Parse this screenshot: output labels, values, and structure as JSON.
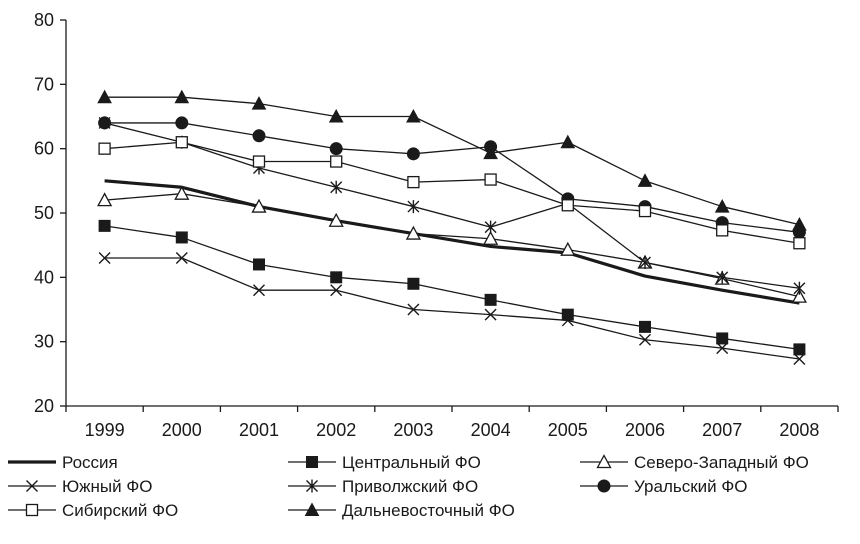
{
  "chart_data": {
    "type": "line",
    "title": "",
    "xlabel": "",
    "ylabel": "",
    "x": [
      "1999",
      "2000",
      "2001",
      "2002",
      "2003",
      "2004",
      "2005",
      "2006",
      "2007",
      "2008"
    ],
    "ylim": [
      20,
      80
    ],
    "yticks": [
      20,
      30,
      40,
      50,
      60,
      70,
      80
    ],
    "grid": false,
    "legend_position": "bottom",
    "series": [
      {
        "name": "Россия",
        "marker": "none",
        "values": [
          55,
          54,
          51,
          48.8,
          46.8,
          44.8,
          43.8,
          40.2,
          38,
          36
        ],
        "bold": true
      },
      {
        "name": "Центральный ФО",
        "marker": "filled-square",
        "values": [
          48,
          46.2,
          42,
          40,
          39,
          36.5,
          34.2,
          32.3,
          30.5,
          28.8
        ]
      },
      {
        "name": "Северо-Западный ФО",
        "marker": "open-triangle",
        "values": [
          52,
          53,
          51,
          48.8,
          46.8,
          46,
          44.3,
          42.3,
          39.8,
          37
        ]
      },
      {
        "name": "Южный ФО",
        "marker": "x",
        "values": [
          43,
          43,
          38,
          38,
          35,
          34.2,
          33.3,
          30.3,
          29,
          27.3
        ]
      },
      {
        "name": "Приволжский ФО",
        "marker": "star",
        "values": [
          64,
          61,
          57,
          54,
          51,
          47.8,
          51.5,
          42.3,
          40,
          38.3
        ]
      },
      {
        "name": "Уральский ФО",
        "marker": "filled-circle",
        "values": [
          64,
          64,
          62,
          60,
          59.2,
          60.3,
          52.2,
          51,
          48.5,
          47
        ]
      },
      {
        "name": "Сибирский ФО",
        "marker": "open-square",
        "values": [
          60,
          61,
          58,
          58,
          54.8,
          55.2,
          51.2,
          50.3,
          47.3,
          45.3
        ]
      },
      {
        "name": "Дальневосточный ФО",
        "marker": "filled-triangle",
        "values": [
          68,
          68,
          67,
          65,
          65,
          59.3,
          61,
          55,
          51,
          48.2
        ]
      }
    ]
  }
}
